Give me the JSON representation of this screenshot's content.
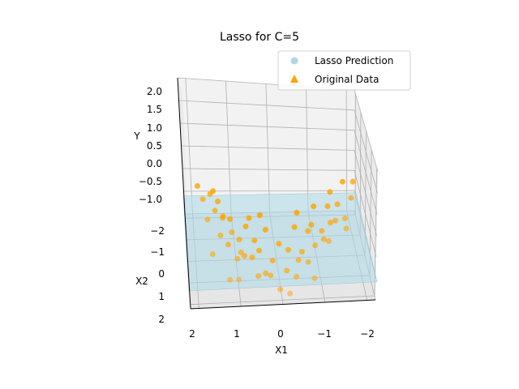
{
  "chart_data": {
    "type": "scatter",
    "projection": "3d",
    "title": "Lasso for C=5",
    "xlabel": "X1",
    "ylabel": "X2",
    "zlabel": "Y",
    "x_ticks": [
      "2",
      "1",
      "0",
      "−1",
      "−2"
    ],
    "y_ticks": [
      "−2",
      "−1",
      "0",
      "1",
      "2"
    ],
    "z_ticks": [
      "2.0",
      "1.5",
      "1.0",
      "0.5",
      "0.0",
      "−0.5",
      "−1.0"
    ],
    "xlim": [
      -2.2,
      2.2
    ],
    "ylim": [
      -2.2,
      2.2
    ],
    "zlim": [
      -1.0,
      2.0
    ],
    "grid": true,
    "legend": {
      "position": "top-right"
    },
    "series": [
      {
        "name": "Lasso Prediction",
        "kind": "surface",
        "color": "#add8e6",
        "marker": "circle",
        "plane_z": -0.55
      },
      {
        "name": "Original Data",
        "kind": "scatter",
        "color": "#ffa500",
        "marker": "triangle",
        "points": [
          [
            1.8,
            0.2,
            0.65
          ],
          [
            1.6,
            -0.4,
            0.45
          ],
          [
            1.7,
            0.6,
            0.35
          ],
          [
            1.5,
            0.1,
            0.3
          ],
          [
            1.9,
            -0.7,
            0.5
          ],
          [
            1.4,
            0.8,
            0.05
          ],
          [
            1.3,
            -0.2,
            -0.05
          ],
          [
            1.6,
            1.1,
            -0.25
          ],
          [
            1.2,
            0.5,
            -0.35
          ],
          [
            1.5,
            -1.0,
            0.2
          ],
          [
            1.1,
            -0.6,
            -0.3
          ],
          [
            1.0,
            0.9,
            -0.5
          ],
          [
            0.9,
            -0.1,
            -0.55
          ],
          [
            0.8,
            0.4,
            -0.7
          ],
          [
            1.2,
            1.4,
            -0.75
          ],
          [
            0.7,
            -0.8,
            -0.6
          ],
          [
            0.6,
            0.2,
            -0.85
          ],
          [
            0.5,
            1.0,
            -0.9
          ],
          [
            0.4,
            -0.3,
            -0.95
          ],
          [
            0.3,
            0.6,
            -1.05
          ],
          [
            0.2,
            -0.9,
            -0.75
          ],
          [
            0.1,
            0.1,
            -1.0
          ],
          [
            0.0,
            1.3,
            -1.1
          ],
          [
            -0.1,
            -0.5,
            -0.9
          ],
          [
            -0.2,
            0.7,
            -0.95
          ],
          [
            -0.3,
            -0.1,
            -0.85
          ],
          [
            -0.4,
            1.1,
            -0.9
          ],
          [
            -0.5,
            -0.7,
            -0.6
          ],
          [
            -0.6,
            0.3,
            -0.7
          ],
          [
            -0.7,
            0.9,
            -0.65
          ],
          [
            -0.8,
            -0.3,
            -0.5
          ],
          [
            -0.9,
            0.5,
            -0.45
          ],
          [
            -1.0,
            -1.0,
            -0.25
          ],
          [
            -1.1,
            0.1,
            -0.3
          ],
          [
            -1.2,
            0.8,
            -0.2
          ],
          [
            -1.3,
            -0.5,
            0.0
          ],
          [
            -1.4,
            0.4,
            0.1
          ],
          [
            -1.5,
            -0.1,
            0.25
          ],
          [
            -1.6,
            0.7,
            0.3
          ],
          [
            -1.7,
            -0.8,
            0.45
          ],
          [
            -1.8,
            0.2,
            0.55
          ],
          [
            -1.6,
            1.0,
            0.2
          ],
          [
            -1.9,
            -0.3,
            0.7
          ],
          [
            -1.4,
            -0.9,
            0.15
          ],
          [
            1.3,
            0.0,
            0.1
          ],
          [
            1.1,
            0.3,
            -0.15
          ],
          [
            0.9,
            0.7,
            -0.45
          ],
          [
            0.5,
            -0.5,
            -0.8
          ],
          [
            -0.5,
            0.5,
            -0.8
          ],
          [
            -0.9,
            -0.5,
            -0.45
          ],
          [
            -1.1,
            0.6,
            -0.25
          ],
          [
            0.2,
            0.9,
            -0.95
          ],
          [
            1.4,
            -0.6,
            0.15
          ],
          [
            -1.3,
            0.2,
            -0.05
          ],
          [
            0.6,
            -1.1,
            -0.55
          ],
          [
            -0.6,
            -1.2,
            -0.5
          ],
          [
            1.0,
            1.6,
            -0.65
          ],
          [
            -0.8,
            1.5,
            -0.75
          ],
          [
            0.3,
            -1.5,
            -0.7
          ],
          [
            -0.2,
            1.7,
            -1.0
          ]
        ]
      }
    ]
  }
}
